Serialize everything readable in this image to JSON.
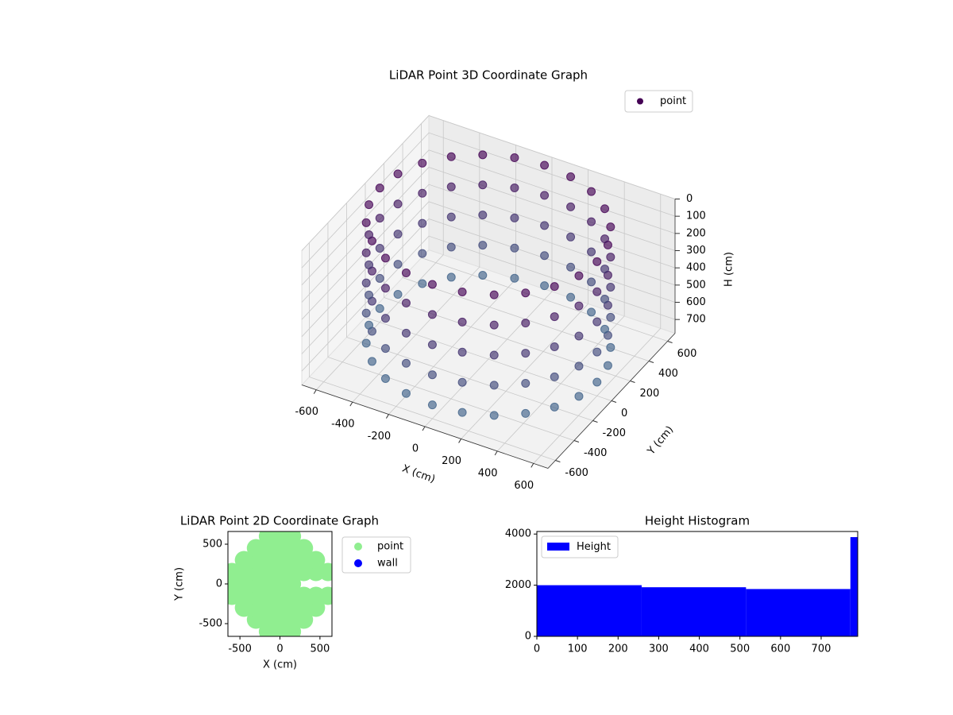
{
  "chart_data": [
    {
      "type": "scatter3d",
      "title": "LiDAR Point 3D Coordinate Graph",
      "xlabel": "X (cm)",
      "ylabel": "Y (cm)",
      "zlabel": "H (cm)",
      "xlim": [
        -680,
        680
      ],
      "ylim": [
        -680,
        680
      ],
      "zlim": [
        0,
        780
      ],
      "z_inverted": true,
      "xticks": [
        -600,
        -400,
        -200,
        0,
        200,
        400,
        600
      ],
      "yticks": [
        -600,
        -400,
        -200,
        0,
        200,
        400,
        600
      ],
      "zticks": [
        0,
        100,
        200,
        300,
        400,
        500,
        600,
        700
      ],
      "grid": true,
      "legend": "upper right",
      "cmap": [
        "#440154",
        "#3e6c8e"
      ],
      "series": [
        {
          "name": "point",
          "color": "#440154",
          "x": [
            600,
            580,
            520,
            424,
            300,
            155,
            0,
            -155,
            -300,
            -424,
            -520,
            -580,
            -600,
            -580,
            -520,
            -424,
            -300,
            -155,
            0,
            155,
            300,
            424,
            520,
            580,
            600,
            580,
            520,
            424,
            300,
            155,
            0,
            -155,
            -300,
            -424,
            -520,
            -580,
            -600,
            -580,
            -520,
            -424,
            -300,
            -155,
            0,
            155,
            300,
            424,
            520,
            580,
            600,
            580,
            520,
            424,
            300,
            155,
            0,
            -155,
            -300,
            -424,
            -520,
            -580,
            -600,
            -580,
            -520,
            -424,
            -300,
            -155,
            0,
            155,
            300,
            424,
            520,
            580,
            600,
            580,
            520,
            424,
            300,
            155,
            0,
            -155,
            -300,
            -424,
            -520,
            -580,
            -600,
            -580,
            -520,
            -424,
            -300,
            -155,
            0,
            155,
            300,
            424,
            520,
            580,
            600,
            580,
            520,
            424,
            300,
            155,
            0,
            -155,
            -300,
            -424,
            -520,
            -580,
            -600,
            -580,
            -520,
            -424,
            -300,
            -155,
            0,
            155,
            300,
            424,
            520,
            580
          ],
          "y": [
            0,
            155,
            300,
            424,
            520,
            580,
            600,
            580,
            520,
            424,
            300,
            155,
            0,
            -155,
            -300,
            -424,
            -520,
            -580,
            -600,
            -580,
            -520,
            -424,
            -300,
            -155,
            0,
            155,
            300,
            424,
            520,
            580,
            600,
            580,
            520,
            424,
            300,
            155,
            0,
            -155,
            -300,
            -424,
            -520,
            -580,
            -600,
            -580,
            -520,
            -424,
            -300,
            -155,
            0,
            155,
            300,
            424,
            520,
            580,
            600,
            580,
            520,
            424,
            300,
            155,
            0,
            -155,
            -300,
            -424,
            -520,
            -580,
            -600,
            -580,
            -520,
            -424,
            -300,
            -155,
            0,
            155,
            300,
            424,
            520,
            580,
            600,
            580,
            520,
            424,
            300,
            155,
            0,
            -155,
            -300,
            -424,
            -520,
            -580,
            -600,
            -580,
            -520,
            -424,
            -300,
            -155,
            0,
            155,
            300,
            424,
            520,
            580,
            600,
            580,
            520,
            424,
            300,
            155,
            0,
            -155,
            -300,
            -424,
            -520,
            -580,
            -600,
            -580,
            -520,
            -424,
            -300,
            -155
          ],
          "h": [
            0,
            0,
            0,
            0,
            0,
            0,
            0,
            0,
            0,
            0,
            0,
            0,
            0,
            0,
            0,
            0,
            0,
            0,
            0,
            0,
            0,
            0,
            0,
            0,
            175,
            175,
            175,
            175,
            175,
            175,
            175,
            175,
            175,
            175,
            175,
            175,
            175,
            175,
            175,
            175,
            175,
            175,
            175,
            175,
            175,
            175,
            175,
            175,
            350,
            350,
            350,
            350,
            350,
            350,
            350,
            350,
            350,
            350,
            350,
            350,
            350,
            350,
            350,
            350,
            350,
            350,
            350,
            350,
            350,
            350,
            350,
            350,
            525,
            525,
            525,
            525,
            525,
            525,
            525,
            525,
            525,
            525,
            525,
            525,
            525,
            525,
            525,
            525,
            525,
            525,
            525,
            525,
            525,
            525,
            525,
            525,
            700,
            700,
            700,
            700,
            700,
            700,
            700,
            700,
            700,
            700,
            700,
            700,
            700,
            700,
            700,
            700,
            700,
            700,
            700,
            700,
            700,
            700,
            700,
            700
          ]
        }
      ]
    },
    {
      "type": "scatter",
      "title": "LiDAR Point 2D Coordinate Graph",
      "xlabel": "X (cm)",
      "ylabel": "Y (cm)",
      "xlim": [
        -650,
        650
      ],
      "ylim": [
        -660,
        660
      ],
      "xticks": [
        -500,
        0,
        500
      ],
      "yticks": [
        -500,
        0,
        500
      ],
      "legend": "outside right",
      "series": [
        {
          "name": "point",
          "color": "#90ee90",
          "x": [
            -600,
            -600,
            -600,
            -450,
            -450,
            -450,
            -450,
            -450,
            -300,
            -300,
            -300,
            -300,
            -300,
            -300,
            -300,
            -150,
            -150,
            -150,
            -150,
            -150,
            -150,
            -150,
            -150,
            -150,
            0,
            0,
            0,
            0,
            0,
            0,
            0,
            0,
            0,
            150,
            150,
            150,
            150,
            150,
            150,
            150,
            150,
            150,
            300,
            300,
            300,
            300,
            300,
            300,
            450,
            450,
            450,
            450,
            600,
            600
          ],
          "y": [
            -150,
            0,
            150,
            -300,
            -150,
            0,
            150,
            300,
            -450,
            -300,
            -150,
            0,
            150,
            300,
            450,
            -600,
            -450,
            -300,
            -150,
            0,
            150,
            300,
            450,
            600,
            -600,
            -450,
            -300,
            -150,
            0,
            150,
            300,
            450,
            600,
            -600,
            -450,
            -300,
            -150,
            0,
            150,
            300,
            450,
            600,
            -450,
            -300,
            -150,
            150,
            300,
            450,
            -300,
            -150,
            150,
            300,
            -150,
            150
          ]
        },
        {
          "name": "wall",
          "color": "#0000ff",
          "x": [],
          "y": []
        }
      ]
    },
    {
      "type": "histogram",
      "title": "Height Histogram",
      "xlim": [
        0,
        790
      ],
      "ylim": [
        0,
        4100
      ],
      "xticks": [
        0,
        100,
        200,
        300,
        400,
        500,
        600,
        700
      ],
      "yticks": [
        0,
        2000,
        4000
      ],
      "legend": "upper left",
      "series": [
        {
          "name": "Height",
          "color": "#0000ff",
          "bins": [
            0,
            258,
            515,
            772,
            790
          ],
          "counts": [
            2000,
            1920,
            1850,
            3880
          ]
        }
      ]
    }
  ]
}
